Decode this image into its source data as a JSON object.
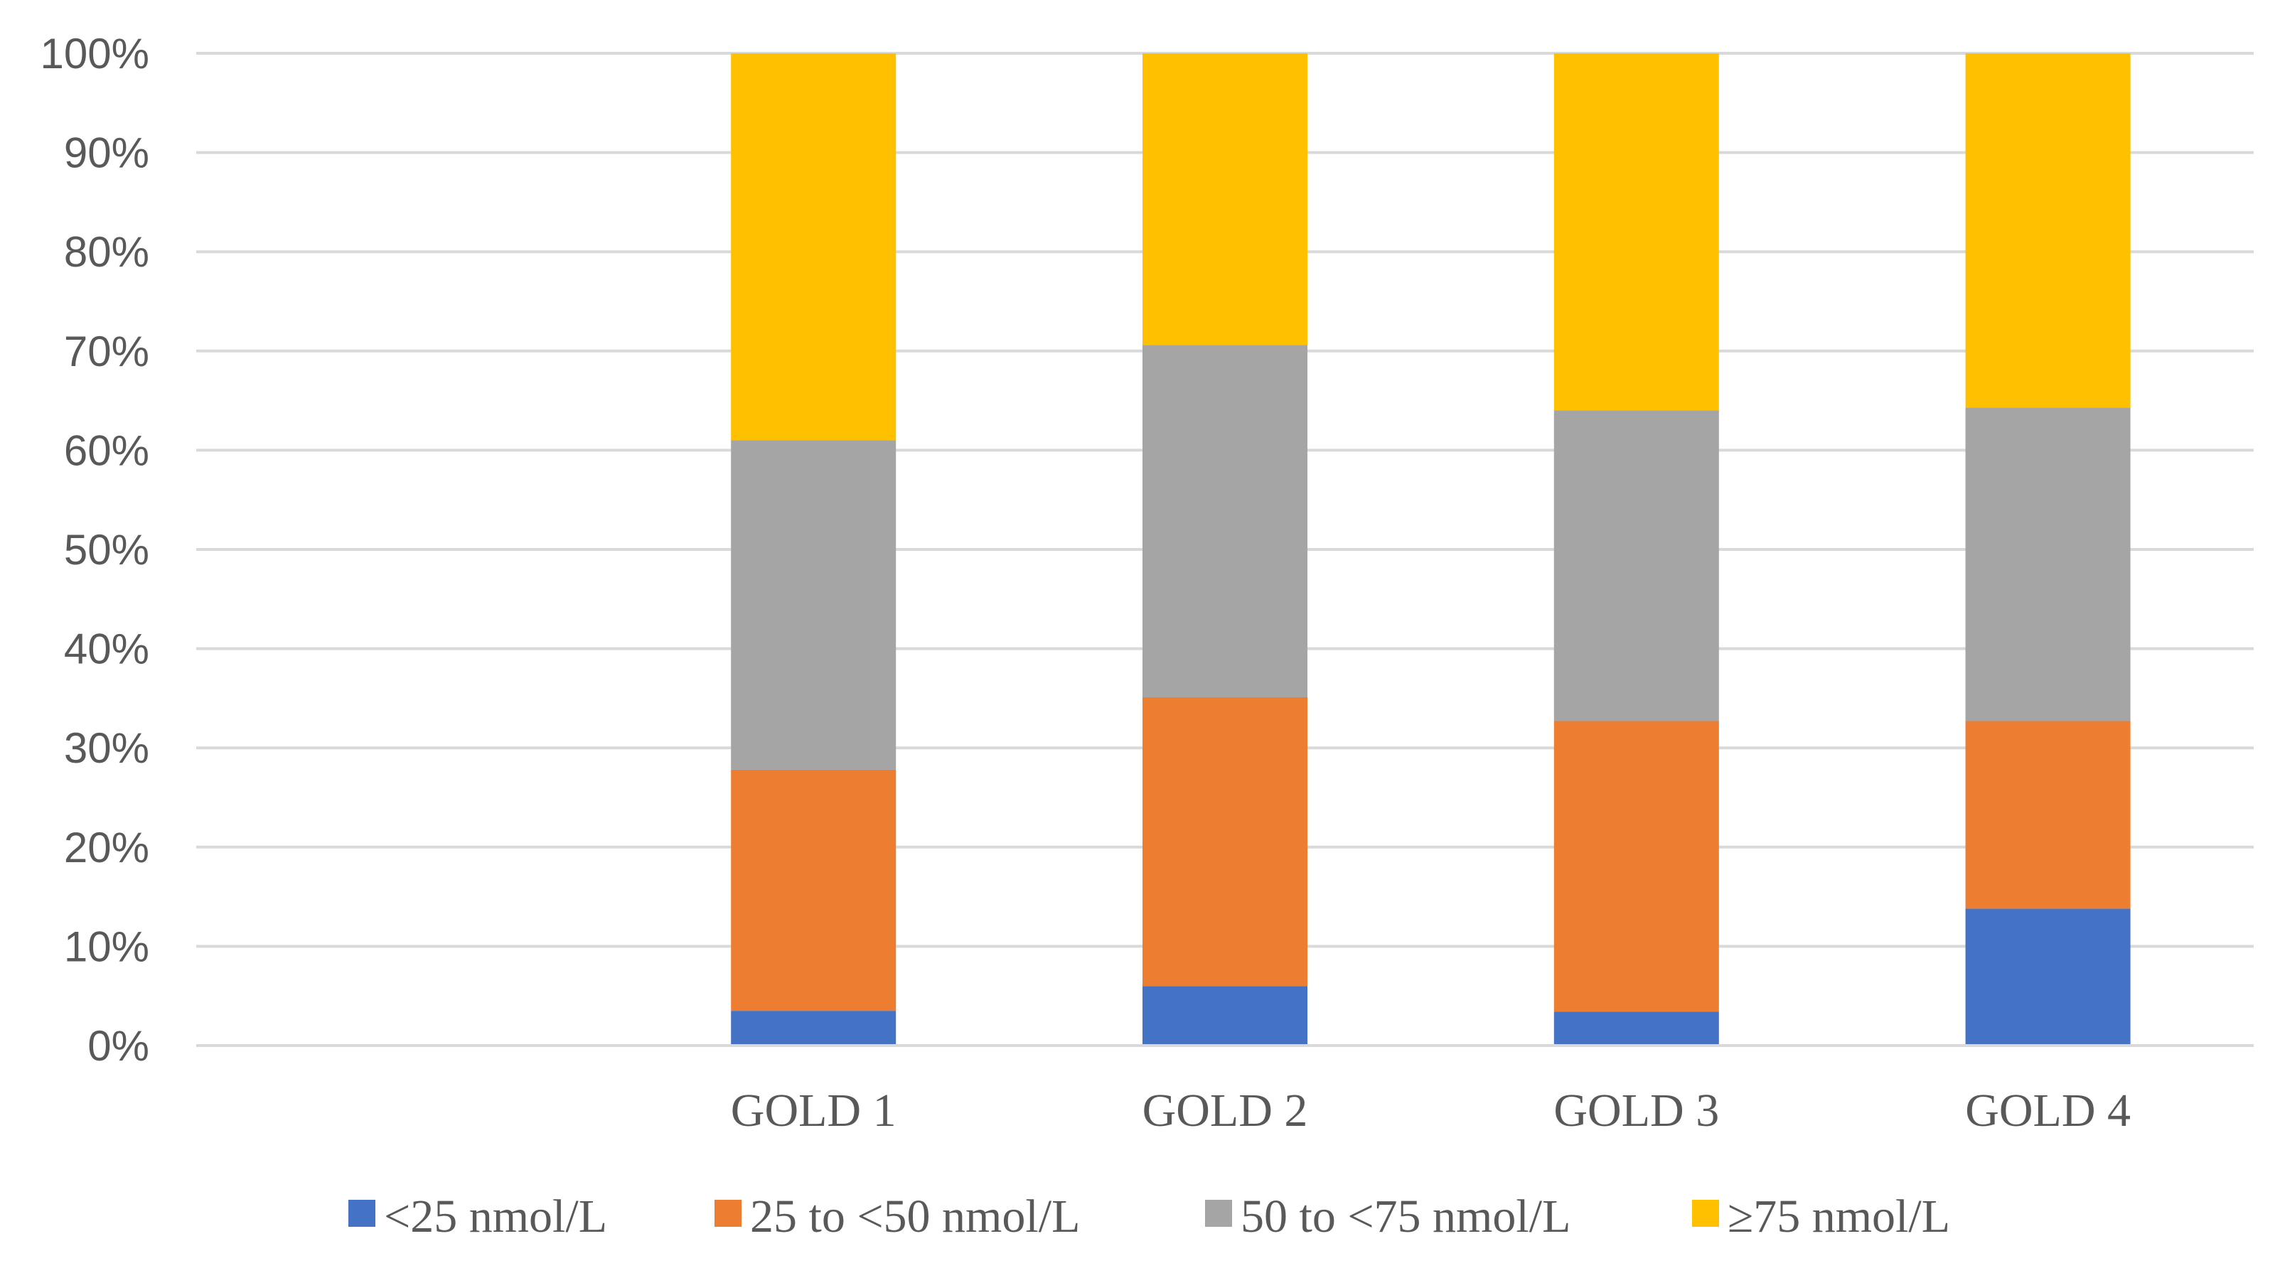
{
  "chart_data": {
    "type": "bar",
    "stacked": true,
    "percent": true,
    "title": "",
    "xlabel": "",
    "ylabel": "",
    "ylim": [
      0,
      100
    ],
    "yticks": [
      "0%",
      "10%",
      "20%",
      "30%",
      "40%",
      "50%",
      "60%",
      "70%",
      "80%",
      "90%",
      "100%"
    ],
    "categories": [
      "",
      "GOLD 1",
      "GOLD 2",
      "GOLD 3",
      "GOLD 4"
    ],
    "series": [
      {
        "name": "<25 nmol/L",
        "color": "#4472C4",
        "values": [
          0,
          3.5,
          6.0,
          3.4,
          13.8
        ]
      },
      {
        "name": "25 to <50 nmol/L",
        "color": "#ED7D31",
        "values": [
          0,
          24.3,
          29.1,
          29.3,
          18.9
        ]
      },
      {
        "name": "50 to <75 nmol/L",
        "color": "#A5A5A5",
        "values": [
          0,
          33.2,
          35.5,
          31.3,
          31.6
        ]
      },
      {
        "name": "≥75 nmol/L",
        "color": "#FFC000",
        "values": [
          0,
          39.0,
          29.4,
          36.0,
          35.7
        ]
      }
    ],
    "legend_position": "bottom",
    "grid": true
  }
}
